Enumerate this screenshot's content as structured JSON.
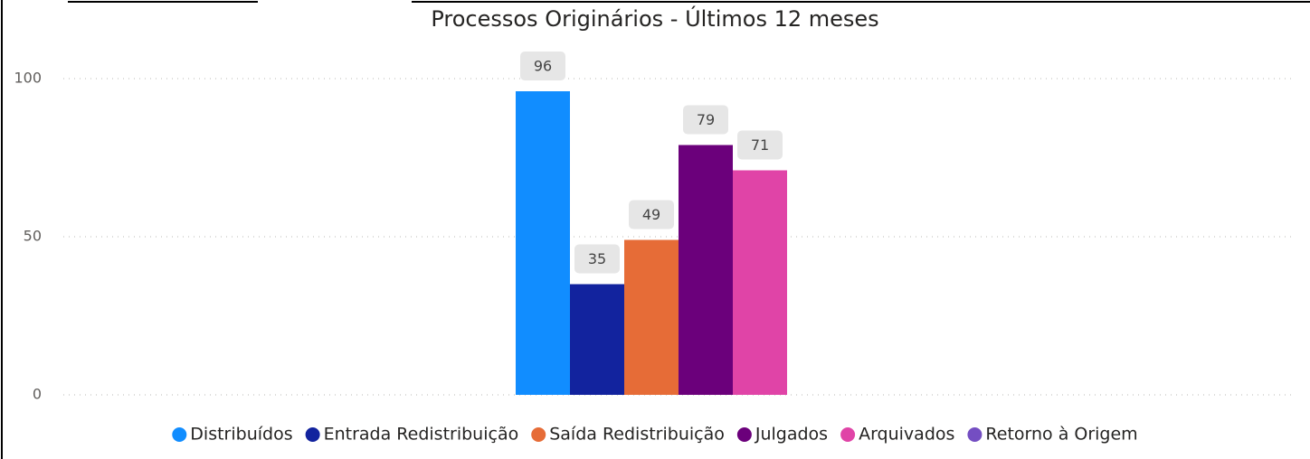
{
  "chart_data": {
    "type": "bar",
    "title": "Processos Originários - Últimos 12 meses",
    "categories": [
      null
    ],
    "series": [
      {
        "name": "Distribuídos",
        "color": "#118dff",
        "values": [
          96
        ]
      },
      {
        "name": "Entrada Redistribuição",
        "color": "#12239e",
        "values": [
          35
        ]
      },
      {
        "name": "Saída Redistribuição",
        "color": "#e66c37",
        "values": [
          49
        ]
      },
      {
        "name": "Julgados",
        "color": "#6b007b",
        "values": [
          79
        ]
      },
      {
        "name": "Arquivados",
        "color": "#e044a7",
        "values": [
          71
        ]
      },
      {
        "name": "Retorno à Origem",
        "color": "#744ec2",
        "values": [
          null
        ]
      }
    ],
    "ylim": [
      0,
      100
    ],
    "yticks": [
      0,
      50,
      100
    ],
    "grid": true
  }
}
